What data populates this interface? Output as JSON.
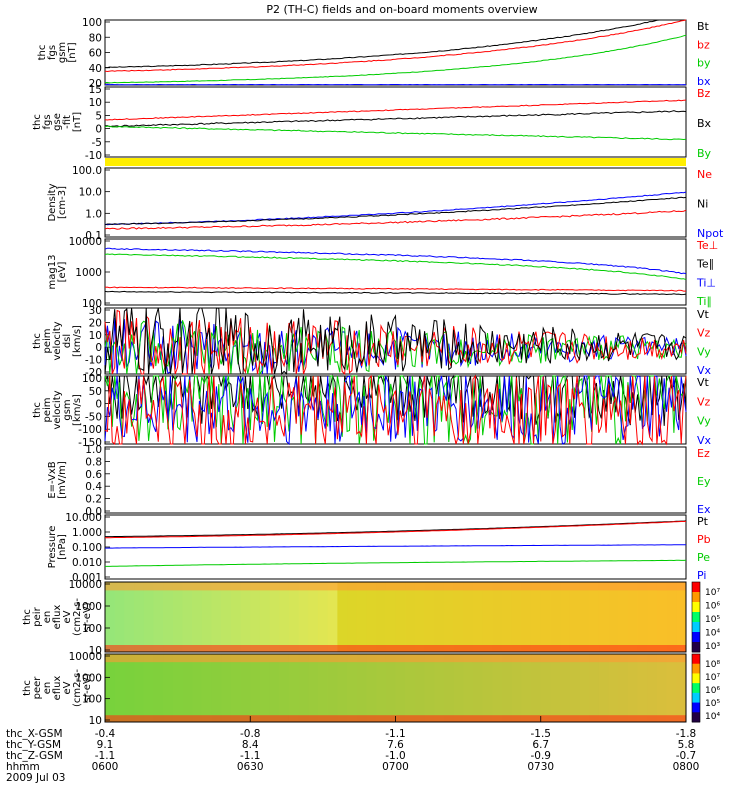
{
  "title": "P2 (TH-C) fields and on-board moments overview",
  "colors": {
    "black": "#000000",
    "red": "#ff0000",
    "green": "#00cc00",
    "blue": "#0000ff",
    "yellow": "#ffee00"
  },
  "chart_data": [
    {
      "type": "line",
      "id": "fgs_gsm",
      "ylabel": [
        "thc",
        "fgs",
        "gsm",
        "[nT]"
      ],
      "yticks": [
        "100",
        "80",
        "60",
        "40",
        "20"
      ],
      "ylim": [
        15,
        100
      ],
      "legend": [
        {
          "name": "Bt",
          "color": "black"
        },
        {
          "name": "bz",
          "color": "red"
        },
        {
          "name": "by",
          "color": "green"
        },
        {
          "name": "bx",
          "color": "blue"
        }
      ],
      "series": [
        {
          "name": "Bt",
          "color": "black",
          "y0": 38,
          "y1": 108,
          "shape": "exp",
          "noise": 0.3
        },
        {
          "name": "bz",
          "color": "red",
          "y0": 33,
          "y1": 100,
          "shape": "exp",
          "noise": 0.3
        },
        {
          "name": "by",
          "color": "green",
          "y0": 18,
          "y1": 80,
          "shape": "exp",
          "noise": 0.2
        },
        {
          "name": "bx",
          "color": "blue",
          "y0": 15.5,
          "y1": 15.5,
          "shape": "flat",
          "noise": 0.1
        }
      ]
    },
    {
      "type": "line",
      "id": "fgs_gse",
      "ylabel": [
        "thc",
        "fgs",
        "gse",
        "-fit",
        "[nT]"
      ],
      "yticks": [
        "15",
        "10",
        "5",
        "0",
        "-5",
        "-10"
      ],
      "ylim": [
        -15,
        17
      ],
      "legend": [
        {
          "name": "Bz",
          "color": "red"
        },
        {
          "name": "Bx",
          "color": "black"
        },
        {
          "name": "By",
          "color": "green"
        }
      ],
      "series": [
        {
          "name": "Bz",
          "color": "red",
          "y0": 2,
          "y1": 11,
          "shape": "lin",
          "noise": 0.3
        },
        {
          "name": "Bx",
          "color": "black",
          "y0": -1,
          "y1": 6,
          "shape": "lin",
          "noise": 0.5
        },
        {
          "name": "By",
          "color": "green",
          "y0": -1,
          "y1": -7,
          "shape": "lin",
          "noise": 0.4
        }
      ]
    },
    {
      "type": "line",
      "id": "density",
      "ylabel": [
        "Density",
        "[cm-3]"
      ],
      "yticks": [
        "100.0",
        "10.0",
        "1.0",
        "0.1"
      ],
      "ylim": [
        0.1,
        200
      ],
      "log": true,
      "legend": [
        {
          "name": "Ne",
          "color": "red"
        },
        {
          "name": "Ni",
          "color": "black"
        },
        {
          "name": "Npot",
          "color": "blue"
        }
      ],
      "series": [
        {
          "name": "Npot",
          "color": "blue",
          "y0": 0.4,
          "y1": 14,
          "shape": "exp",
          "noise": 0.05
        },
        {
          "name": "Ni",
          "color": "black",
          "y0": 0.4,
          "y1": 8,
          "shape": "exp",
          "noise": 0.05
        },
        {
          "name": "Ne",
          "color": "red",
          "y0": 0.25,
          "y1": 1.8,
          "shape": "exp",
          "noise": 0.08
        }
      ]
    },
    {
      "type": "line",
      "id": "temp",
      "ylabel": [
        "mag13",
        "[eV]"
      ],
      "yticks": [
        "10000",
        "1000",
        "100"
      ],
      "ylim": [
        30,
        12000
      ],
      "log": true,
      "legend": [
        {
          "name": "Te⊥",
          "color": "red"
        },
        {
          "name": "Te∥",
          "color": "black"
        },
        {
          "name": "Ti⊥",
          "color": "blue"
        },
        {
          "name": "Ti∥",
          "color": "green"
        }
      ],
      "series": [
        {
          "name": "Ti⊥",
          "color": "blue",
          "y0": 5000,
          "y1": 500,
          "shape": "lin",
          "noise": 0.05
        },
        {
          "name": "Ti∥",
          "color": "green",
          "y0": 3000,
          "y1": 300,
          "shape": "lin",
          "noise": 0.05
        },
        {
          "name": "Te⊥",
          "color": "red",
          "y0": 150,
          "y1": 110,
          "shape": "lin",
          "noise": 0.04
        },
        {
          "name": "Te∥",
          "color": "black",
          "y0": 100,
          "y1": 80,
          "shape": "lin",
          "noise": 0.04
        }
      ]
    },
    {
      "type": "line",
      "id": "velocity_dsl",
      "ylabel": [
        "thc",
        "peim",
        "velocity",
        "dsl",
        "[km/s]"
      ],
      "yticks": [
        "30",
        "20",
        "10",
        "0",
        "-10",
        "-20"
      ],
      "ylim": [
        -20,
        30
      ],
      "legend": [
        {
          "name": "Vt",
          "color": "black"
        },
        {
          "name": "Vz",
          "color": "red"
        },
        {
          "name": "Vy",
          "color": "green"
        },
        {
          "name": "Vx",
          "color": "blue"
        }
      ],
      "series": [
        {
          "name": "Vx",
          "color": "blue",
          "y0": -2,
          "y1": 0,
          "shape": "flat",
          "noise": 6,
          "decay": true
        },
        {
          "name": "Vy",
          "color": "green",
          "y0": -2,
          "y1": 0,
          "shape": "flat",
          "noise": 6,
          "decay": true
        },
        {
          "name": "Vz",
          "color": "red",
          "y0": 0,
          "y1": 0,
          "shape": "flat",
          "noise": 7,
          "decay": true
        },
        {
          "name": "Vt",
          "color": "black",
          "y0": 5,
          "y1": 1,
          "shape": "lin",
          "noise": 8,
          "decay": true
        }
      ]
    },
    {
      "type": "line",
      "id": "velocity_gsm",
      "ylabel": [
        "thc",
        "peim",
        "velocity",
        "gsm",
        "[km/s]"
      ],
      "yticks": [
        "100",
        "50",
        "0",
        "-50",
        "-100",
        "-150"
      ],
      "ylim": [
        -150,
        100
      ],
      "legend": [
        {
          "name": "Vt",
          "color": "black"
        },
        {
          "name": "Vz",
          "color": "red"
        },
        {
          "name": "Vy",
          "color": "green"
        },
        {
          "name": "Vx",
          "color": "blue"
        }
      ],
      "series": [
        {
          "name": "Vt",
          "color": "black",
          "y0": 75,
          "y1": 65,
          "shape": "flat",
          "noise": 10
        },
        {
          "name": "Vy",
          "color": "green",
          "y0": 15,
          "y1": 10,
          "shape": "flat",
          "noise": 12
        },
        {
          "name": "Vx",
          "color": "blue",
          "y0": -10,
          "y1": -5,
          "shape": "flat",
          "noise": 10
        },
        {
          "name": "Vz",
          "color": "red",
          "y0": -45,
          "y1": -40,
          "shape": "flat",
          "noise": 12
        }
      ]
    },
    {
      "type": "line",
      "id": "efield",
      "ylabel": [
        "E=-VxB",
        "[mV/m]"
      ],
      "yticks": [
        "1.0",
        "0.8",
        "0.6",
        "0.4",
        "0.2",
        "0.0"
      ],
      "ylim": [
        0,
        1
      ],
      "legend": [
        {
          "name": "Ez",
          "color": "red"
        },
        {
          "name": "Ey",
          "color": "green"
        },
        {
          "name": "Ex",
          "color": "blue"
        }
      ],
      "series": []
    },
    {
      "type": "line",
      "id": "pressure",
      "ylabel": [
        "Pressure",
        "[nPa]"
      ],
      "yticks": [
        "10.000",
        "1.000",
        "0.100",
        "0.010",
        "0.001"
      ],
      "ylim": [
        0.001,
        20
      ],
      "log": true,
      "legend": [
        {
          "name": "Pt",
          "color": "black"
        },
        {
          "name": "Pb",
          "color": "red"
        },
        {
          "name": "Pe",
          "color": "green"
        },
        {
          "name": "Pi",
          "color": "blue"
        }
      ],
      "series": [
        {
          "name": "Pt",
          "color": "black",
          "y0": 0.7,
          "y1": 8,
          "shape": "exp",
          "noise": 0.01
        },
        {
          "name": "Pb",
          "color": "red",
          "y0": 0.6,
          "y1": 7.5,
          "shape": "exp",
          "noise": 0.01
        },
        {
          "name": "Pi",
          "color": "blue",
          "y0": 0.12,
          "y1": 0.2,
          "shape": "lin",
          "noise": 0.01
        },
        {
          "name": "Pe",
          "color": "green",
          "y0": 0.007,
          "y1": 0.018,
          "shape": "lin",
          "noise": 0.01
        }
      ]
    },
    {
      "type": "heatmap",
      "id": "peir",
      "ylabel": [
        "thc",
        "peir",
        "en",
        "eflux",
        "eV",
        "(cm2-s-",
        "sr-eV)"
      ],
      "yticks": [
        "10000",
        "1000",
        "100",
        "10"
      ],
      "cbar": [
        "10⁷",
        "10⁶",
        "10⁵",
        "10⁴",
        "10³"
      ]
    },
    {
      "type": "heatmap",
      "id": "peer",
      "ylabel": [
        "thc",
        "peer",
        "en",
        "eflux",
        "eV",
        "(cm2-s-",
        "sr-eV)"
      ],
      "yticks": [
        "10000",
        "1000",
        "100",
        "10"
      ],
      "cbar": [
        "10⁸",
        "10⁷",
        "10⁶",
        "10⁵",
        "10⁴"
      ]
    }
  ],
  "xaxis": {
    "row_labels": [
      "thc_X-GSM",
      "thc_Y-GSM",
      "thc_Z-GSM",
      "hhmm",
      "2009 Jul 03"
    ],
    "columns": [
      {
        "x": "-0.4",
        "y": "9.1",
        "z": "-1.1",
        "t": "0600"
      },
      {
        "x": "-0.8",
        "y": "8.4",
        "z": "-1.1",
        "t": "0630"
      },
      {
        "x": "-1.1",
        "y": "7.6",
        "z": "-1.0",
        "t": "0700"
      },
      {
        "x": "-1.5",
        "y": "6.7",
        "z": "-0.9",
        "t": "0730"
      },
      {
        "x": "-1.8",
        "y": "5.8",
        "z": "-0.7",
        "t": "0800"
      }
    ]
  }
}
